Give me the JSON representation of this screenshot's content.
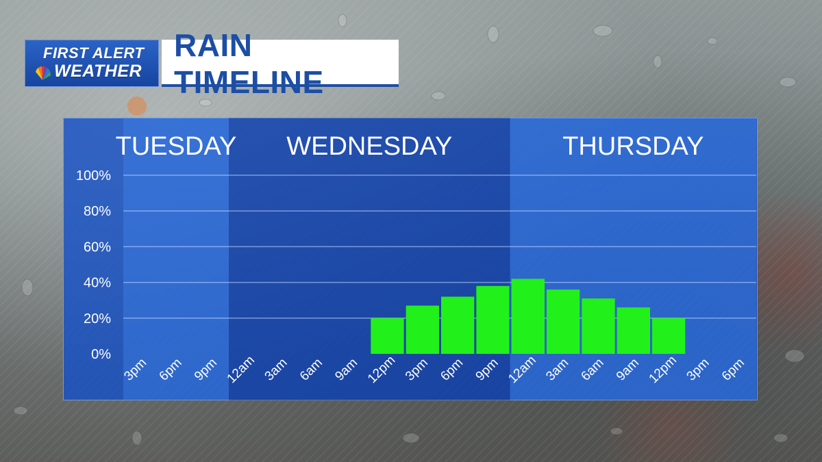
{
  "header": {
    "logo_line1": "FIRST ALERT",
    "logo_line2": "WEATHER",
    "title": "RAIN TIMELINE"
  },
  "colors": {
    "bar": "#22f01a",
    "panel": "#1e5bd6",
    "title_text": "#1c4ea5"
  },
  "chart_data": {
    "type": "bar",
    "ylim": [
      0,
      100
    ],
    "y_ticks": [
      "0%",
      "20%",
      "40%",
      "60%",
      "80%",
      "100%"
    ],
    "categories": [
      "3pm",
      "6pm",
      "9pm",
      "12am",
      "3am",
      "6am",
      "9am",
      "12pm",
      "3pm",
      "6pm",
      "9pm",
      "12am",
      "3am",
      "6am",
      "9am",
      "12pm",
      "3pm",
      "6pm"
    ],
    "values": [
      null,
      null,
      null,
      null,
      null,
      null,
      null,
      20,
      27,
      32,
      38,
      42,
      36,
      31,
      26,
      20,
      null,
      null
    ],
    "days": [
      {
        "label": "TUESDAY",
        "start": 0,
        "end": 3
      },
      {
        "label": "WEDNESDAY",
        "start": 3,
        "end": 11
      },
      {
        "label": "THURSDAY",
        "start": 11,
        "end": 18
      }
    ],
    "grid": true,
    "legend": "none"
  }
}
